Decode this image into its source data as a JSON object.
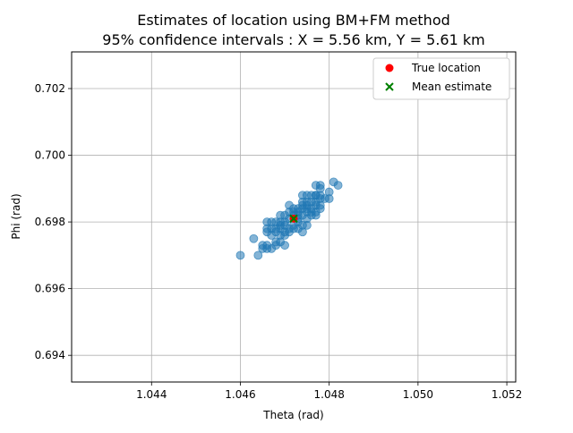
{
  "chart_data": {
    "type": "scatter",
    "title_line1": "Estimates of location using BM+FM method",
    "title_line2": "95% confidence intervals : X = 5.56 km, Y = 5.61 km",
    "xlabel": "Theta (rad)",
    "ylabel": "Phi (rad)",
    "xlim": [
      1.0422,
      1.0522
    ],
    "ylim": [
      0.6932,
      0.7031
    ],
    "xticks": [
      {
        "value": 1.044,
        "label": "1.044"
      },
      {
        "value": 1.046,
        "label": "1.046"
      },
      {
        "value": 1.048,
        "label": "1.048"
      },
      {
        "value": 1.05,
        "label": "1.050"
      },
      {
        "value": 1.052,
        "label": "1.052"
      }
    ],
    "yticks": [
      {
        "value": 0.694,
        "label": "0.694"
      },
      {
        "value": 0.696,
        "label": "0.696"
      },
      {
        "value": 0.698,
        "label": "0.698"
      },
      {
        "value": 0.7,
        "label": "0.700"
      },
      {
        "value": 0.702,
        "label": "0.702"
      }
    ],
    "grid": true,
    "legend_position": "top-right",
    "legend": [
      {
        "label": "True location",
        "marker": "circle",
        "color": "#ff0000"
      },
      {
        "label": "Mean estimate",
        "marker": "x",
        "color": "#008000"
      }
    ],
    "series": [
      {
        "kind": "estimates",
        "color": "#1f77b4",
        "points": [
          [
            1.046,
            0.697
          ],
          [
            1.0464,
            0.697
          ],
          [
            1.0463,
            0.6975
          ],
          [
            1.0465,
            0.6972
          ],
          [
            1.0465,
            0.6973
          ],
          [
            1.0466,
            0.6973
          ],
          [
            1.0466,
            0.6972
          ],
          [
            1.0467,
            0.6972
          ],
          [
            1.0468,
            0.6974
          ],
          [
            1.0468,
            0.6973
          ],
          [
            1.0469,
            0.6974
          ],
          [
            1.0469,
            0.6976
          ],
          [
            1.047,
            0.6973
          ],
          [
            1.0467,
            0.6976
          ],
          [
            1.0468,
            0.6977
          ],
          [
            1.0468,
            0.6978
          ],
          [
            1.0469,
            0.6978
          ],
          [
            1.047,
            0.6976
          ],
          [
            1.047,
            0.6977
          ],
          [
            1.0466,
            0.6977
          ],
          [
            1.0466,
            0.6978
          ],
          [
            1.0467,
            0.6978
          ],
          [
            1.0466,
            0.698
          ],
          [
            1.0467,
            0.698
          ],
          [
            1.0469,
            0.6979
          ],
          [
            1.0469,
            0.698
          ],
          [
            1.0469,
            0.6982
          ],
          [
            1.047,
            0.6982
          ],
          [
            1.047,
            0.6979
          ],
          [
            1.0471,
            0.6977
          ],
          [
            1.0471,
            0.6978
          ],
          [
            1.0471,
            0.6981
          ],
          [
            1.0471,
            0.6983
          ],
          [
            1.0472,
            0.6982
          ],
          [
            1.0472,
            0.6979
          ],
          [
            1.0472,
            0.6978
          ],
          [
            1.0473,
            0.6978
          ],
          [
            1.0473,
            0.698
          ],
          [
            1.0473,
            0.6982
          ],
          [
            1.0474,
            0.6982
          ],
          [
            1.0474,
            0.6979
          ],
          [
            1.0474,
            0.6977
          ],
          [
            1.0474,
            0.6984
          ],
          [
            1.0473,
            0.6984
          ],
          [
            1.0474,
            0.6985
          ],
          [
            1.0475,
            0.6983
          ],
          [
            1.0475,
            0.6984
          ],
          [
            1.0474,
            0.6986
          ],
          [
            1.0475,
            0.6985
          ],
          [
            1.0475,
            0.6986
          ],
          [
            1.0474,
            0.6988
          ],
          [
            1.0475,
            0.6988
          ],
          [
            1.0476,
            0.6982
          ],
          [
            1.0476,
            0.6983
          ],
          [
            1.0476,
            0.6984
          ],
          [
            1.0476,
            0.6986
          ],
          [
            1.0477,
            0.6982
          ],
          [
            1.0477,
            0.6983
          ],
          [
            1.0477,
            0.6985
          ],
          [
            1.0477,
            0.6986
          ],
          [
            1.0477,
            0.6988
          ],
          [
            1.0477,
            0.6988
          ],
          [
            1.0478,
            0.6984
          ],
          [
            1.0478,
            0.6985
          ],
          [
            1.0478,
            0.6987
          ],
          [
            1.0478,
            0.6988
          ],
          [
            1.0479,
            0.6987
          ],
          [
            1.0477,
            0.6991
          ],
          [
            1.0478,
            0.6991
          ],
          [
            1.0478,
            0.699
          ],
          [
            1.048,
            0.6987
          ],
          [
            1.048,
            0.6989
          ],
          [
            1.0481,
            0.6992
          ],
          [
            1.0482,
            0.6991
          ],
          [
            1.0475,
            0.6979
          ],
          [
            1.0473,
            0.6981
          ],
          [
            1.0472,
            0.6983
          ],
          [
            1.047,
            0.698
          ],
          [
            1.0468,
            0.698
          ],
          [
            1.0471,
            0.6985
          ],
          [
            1.0476,
            0.6988
          ],
          [
            1.0472,
            0.6984
          ],
          [
            1.0475,
            0.6981
          ],
          [
            1.0473,
            0.6983
          ]
        ]
      },
      {
        "kind": "true-location",
        "color": "#ff0000",
        "points": [
          [
            1.0472,
            0.6981
          ]
        ]
      },
      {
        "kind": "mean-estimate",
        "color": "#008000",
        "points": [
          [
            1.0472,
            0.6981
          ]
        ]
      }
    ]
  }
}
